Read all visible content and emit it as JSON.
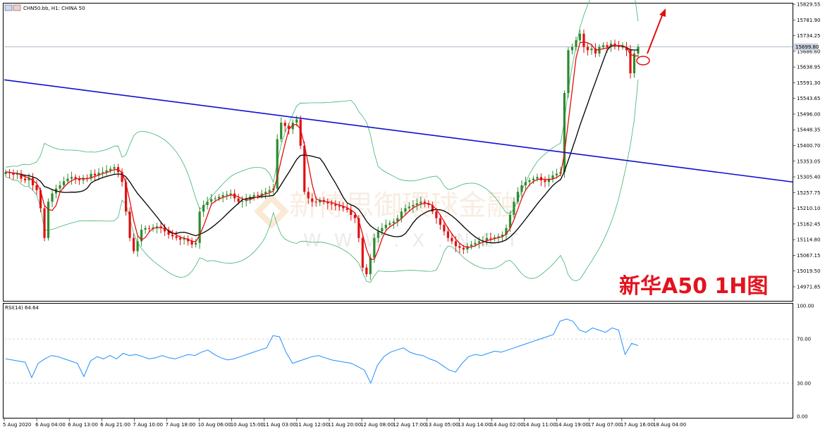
{
  "header": {
    "symbol": "CHN50.bb, H1: CHINA 50"
  },
  "badge": {
    "text": "新华A50 1H图"
  },
  "watermark": {
    "text": "新博思御環球金融",
    "url": "WWW.X.NET"
  },
  "rsi": {
    "label": "RSI(14) 64.64",
    "levels": [
      100.0,
      70.0,
      30.0,
      0.0
    ],
    "level_labels": [
      "100.00",
      "70.00",
      "30.00",
      "0.00"
    ]
  },
  "price_axis": {
    "labels": [
      "15829.55",
      "15781.90",
      "15734.25",
      "15686.60",
      "15638.95",
      "15591.30",
      "15543.65",
      "15496.00",
      "15448.35",
      "15400.70",
      "15353.05",
      "15305.40",
      "15257.75",
      "15210.10",
      "15162.45",
      "15114.80",
      "15067.15",
      "15019.50",
      "14971.85"
    ],
    "current": "15699.80",
    "top": 15829.55,
    "bottom": 14971.85
  },
  "time_axis": {
    "labels": [
      "5 Aug 2020",
      "6 Aug 04:00",
      "6 Aug 13:00",
      "6 Aug 21:00",
      "7 Aug 10:00",
      "7 Aug 18:00",
      "10 Aug 06:00",
      "10 Aug 15:00",
      "11 Aug 03:00",
      "11 Aug 12:00",
      "11 Aug 20:00",
      "12 Aug 08:00",
      "12 Aug 17:00",
      "13 Aug 05:00",
      "13 Aug 14:00",
      "14 Aug 02:00",
      "14 Aug 11:00",
      "14 Aug 19:00",
      "17 Aug 07:00",
      "17 Aug 16:00",
      "18 Aug 04:00"
    ]
  },
  "colors": {
    "bull": "#2e8b2e",
    "bear": "#e01010",
    "trendline": "#1010d0",
    "bands": "#3cb371",
    "fast_ma": "#e01010",
    "slow_ma": "#000000",
    "rsi_line": "#1e90ff",
    "arrow": "#e01010",
    "grid": "#c8c8c8"
  },
  "chart_data": {
    "type": "candlestick",
    "symbol": "CHN50.bb",
    "timeframe": "H1",
    "ylim": [
      14971.85,
      15829.55
    ],
    "current_price": 15699.8,
    "candles_key": "closing prices per hourly bar, approx.",
    "closes": [
      15320,
      15318,
      15312,
      15315,
      15300,
      15295,
      15302,
      15280,
      15265,
      15210,
      15120,
      15230,
      15255,
      15270,
      15280,
      15292,
      15300,
      15305,
      15300,
      15295,
      15302,
      15300,
      15315,
      15310,
      15318,
      15320,
      15325,
      15330,
      15335,
      15320,
      15290,
      15200,
      15120,
      15080,
      15110,
      15145,
      15150,
      15148,
      15152,
      15155,
      15150,
      15140,
      15130,
      15125,
      15120,
      15115,
      15118,
      15110,
      15100,
      15105,
      15200,
      15220,
      15230,
      15238,
      15240,
      15245,
      15250,
      15252,
      15255,
      15240,
      15230,
      15232,
      15238,
      15245,
      15250,
      15248,
      15255,
      15260,
      15265,
      15270,
      15420,
      15470,
      15460,
      15450,
      15470,
      15480,
      15400,
      15260,
      15240,
      15230,
      15228,
      15235,
      15230,
      15225,
      15222,
      15218,
      15215,
      15210,
      15205,
      15190,
      15180,
      15120,
      15030,
      15010,
      15060,
      15120,
      15140,
      15150,
      15160,
      15165,
      15170,
      15180,
      15200,
      15210,
      15215,
      15220,
      15225,
      15230,
      15225,
      15220,
      15200,
      15180,
      15160,
      15140,
      15120,
      15110,
      15095,
      15090,
      15085,
      15095,
      15100,
      15105,
      15110,
      15112,
      15120,
      15118,
      15122,
      15125,
      15130,
      15150,
      15190,
      15230,
      15260,
      15280,
      15290,
      15295,
      15300,
      15305,
      15295,
      15290,
      15300,
      15310,
      15315,
      15320,
      15560,
      15690,
      15700,
      15720,
      15740,
      15700,
      15690,
      15695,
      15680,
      15700,
      15705,
      15700,
      15710,
      15705,
      15700,
      15700,
      15690,
      15620,
      15680,
      15700
    ],
    "series": [
      {
        "name": "trendline",
        "points": [
          [
            "5 Aug 2020",
            15600
          ],
          [
            "18 Aug 04:00",
            15290
          ]
        ]
      }
    ],
    "rsi_values": [
      52,
      51,
      50,
      49,
      35,
      48,
      52,
      55,
      54,
      52,
      50,
      48,
      36,
      50,
      54,
      52,
      55,
      52,
      57,
      55,
      56,
      54,
      52,
      53,
      55,
      53,
      52,
      54,
      56,
      55,
      58,
      60,
      56,
      53,
      51,
      52,
      54,
      56,
      58,
      60,
      62,
      73,
      72,
      58,
      48,
      50,
      52,
      54,
      55,
      53,
      51,
      50,
      49,
      48,
      45,
      42,
      30,
      46,
      54,
      58,
      60,
      62,
      58,
      56,
      55,
      52,
      50,
      46,
      42,
      40,
      48,
      54,
      56,
      55,
      57,
      59,
      58,
      60,
      62,
      64,
      66,
      68,
      70,
      72,
      74,
      86,
      88,
      86,
      78,
      76,
      80,
      78,
      76,
      80,
      78,
      56,
      66,
      64
    ],
    "rsi_current": 64.64
  }
}
